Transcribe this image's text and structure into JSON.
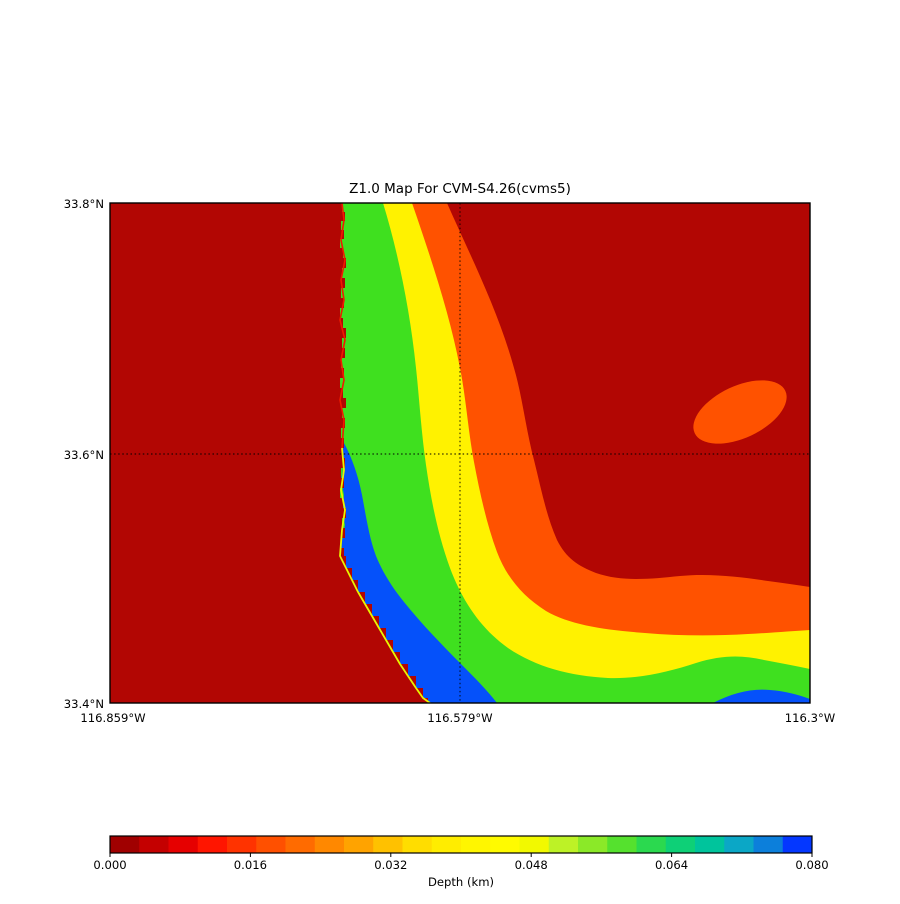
{
  "chart_data": {
    "type": "heatmap",
    "title": "Z1.0 Map For CVM-S4.26(cvms5)",
    "xlabel": "",
    "ylabel": "",
    "x_ticks": [
      "116.859°W",
      "116.579°W",
      "116.3°W"
    ],
    "y_ticks": [
      "33.8°N",
      "33.6°N",
      "33.4°N"
    ],
    "x_range_deg_west": [
      116.859,
      116.3
    ],
    "y_range_deg_north": [
      33.4,
      33.8
    ],
    "grid": "dotted crosshair at 116.579°W and 33.6°N",
    "legend": "none",
    "features": [
      "uniform minimum-depth (dark red) field covering west third and northeast region",
      "jagged north-south contour boundary near the west-center of the map",
      "nested contour bands green/yellow/orange curving from the top edge and sweeping to the southeast corner",
      "blue (deepest) band hugging the jagged boundary from 33.6N down to the bottom edge",
      "isolated orange elliptical deep spot in the northeast dark-red field",
      "small blue pocket along the bottom edge near the southeast corner"
    ],
    "map_colors": {
      "background": "#B20603",
      "band_orange": "#FF5200",
      "band_yellow": "#FFF200",
      "band_green": "#3FE01F",
      "band_blue": "#0551FA",
      "fringe_red": "#F01A00",
      "fringe_yellow": "#E8F500"
    },
    "colorbar": {
      "label": "Depth (km)",
      "ticks": [
        "0.000",
        "0.016",
        "0.032",
        "0.048",
        "0.064",
        "0.080"
      ],
      "tick_values": [
        0.0,
        0.016,
        0.032,
        0.048,
        0.064,
        0.08
      ],
      "range": [
        0.0,
        0.08
      ],
      "segment_colors": [
        "#A00000",
        "#C40000",
        "#E60000",
        "#FF1500",
        "#FF3300",
        "#FF5000",
        "#FF6B00",
        "#FF8800",
        "#FFA300",
        "#FFC100",
        "#FFDD00",
        "#FFED00",
        "#FFF600",
        "#FFFB00",
        "#F2F900",
        "#BDF226",
        "#8BE928",
        "#55E12E",
        "#2BD94F",
        "#0ED077",
        "#00C49C",
        "#0BA7C6",
        "#0C7FDB",
        "#0437FF"
      ]
    }
  }
}
